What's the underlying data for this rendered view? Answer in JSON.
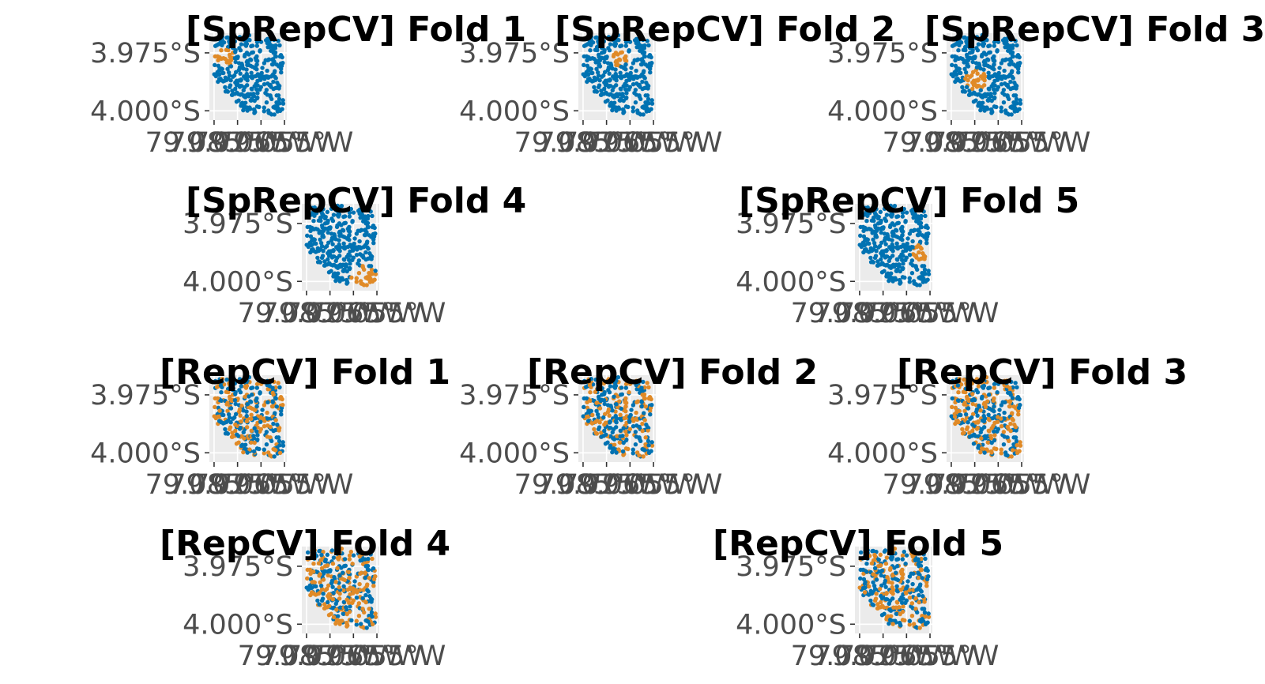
{
  "colors": {
    "training": "#0072B2",
    "testing": "#E08A27",
    "panel_background": "#EBEBEB",
    "grid": "#FFFFFF",
    "axis_text": "#4D4D4D",
    "title_text": "#000000"
  },
  "chart_data": [
    {
      "type": "scatter",
      "title": "[SpRepCV] Fold 1",
      "partition": "spatial",
      "test_region": {
        "lon": -79.0805,
        "lat": -3.9765,
        "radius": 0.0042
      },
      "x_ticks": [
        "79.085°W",
        "79.075°W",
        "79.065°W",
        "79.055°W"
      ],
      "y_ticks": [
        "3.975°S",
        "4.000°S"
      ],
      "xlim": [
        -79.087,
        -79.054
      ],
      "ylim": [
        -4.004,
        -3.9665
      ],
      "series": [
        {
          "color": "training"
        },
        {
          "color": "testing"
        }
      ]
    },
    {
      "type": "scatter",
      "title": "[SpRepCV] Fold 2",
      "partition": "spatial",
      "test_region": {
        "lon": -79.0695,
        "lat": -3.9765,
        "radius": 0.0042
      },
      "x_ticks": [
        "79.085°W",
        "79.075°W",
        "79.065°W",
        "79.055°W"
      ],
      "y_ticks": [
        "3.975°S",
        "4.000°S"
      ],
      "xlim": [
        -79.087,
        -79.054
      ],
      "ylim": [
        -4.004,
        -3.9665
      ],
      "series": [
        {
          "color": "training"
        },
        {
          "color": "testing"
        }
      ]
    },
    {
      "type": "scatter",
      "title": "[SpRepCV] Fold 3",
      "partition": "spatial",
      "test_region": {
        "lon": -79.0745,
        "lat": -3.9865,
        "radius": 0.0048
      },
      "x_ticks": [
        "79.085°W",
        "79.075°W",
        "79.065°W",
        "79.055°W"
      ],
      "y_ticks": [
        "3.975°S",
        "4.000°S"
      ],
      "xlim": [
        -79.087,
        -79.054
      ],
      "ylim": [
        -4.004,
        -3.9665
      ],
      "series": [
        {
          "color": "training"
        },
        {
          "color": "testing"
        }
      ]
    },
    {
      "type": "scatter",
      "title": "[SpRepCV] Fold 4",
      "partition": "spatial",
      "test_region": {
        "lon": -79.0605,
        "lat": -3.9985,
        "radius": 0.0055
      },
      "x_ticks": [
        "79.085°W",
        "79.075°W",
        "79.065°W",
        "79.055°W"
      ],
      "y_ticks": [
        "3.975°S",
        "4.000°S"
      ],
      "xlim": [
        -79.087,
        -79.054
      ],
      "ylim": [
        -4.004,
        -3.9665
      ],
      "series": [
        {
          "color": "training"
        },
        {
          "color": "testing"
        }
      ]
    },
    {
      "type": "scatter",
      "title": "[SpRepCV] Fold 5",
      "partition": "spatial",
      "test_region": {
        "lon": -79.0585,
        "lat": -3.9885,
        "radius": 0.0047
      },
      "x_ticks": [
        "79.085°W",
        "79.075°W",
        "79.065°W",
        "79.055°W"
      ],
      "y_ticks": [
        "3.975°S",
        "4.000°S"
      ],
      "xlim": [
        -79.087,
        -79.054
      ],
      "ylim": [
        -4.004,
        -3.9665
      ],
      "series": [
        {
          "color": "training"
        },
        {
          "color": "testing"
        }
      ]
    },
    {
      "type": "scatter",
      "title": "[RepCV] Fold 1",
      "partition": "random",
      "test_fraction": 0.5,
      "x_ticks": [
        "79.085°W",
        "79.075°W",
        "79.065°W",
        "79.055°W"
      ],
      "y_ticks": [
        "3.975°S",
        "4.000°S"
      ],
      "xlim": [
        -79.087,
        -79.054
      ],
      "ylim": [
        -4.004,
        -3.9665
      ],
      "series": [
        {
          "color": "training"
        },
        {
          "color": "testing"
        }
      ]
    },
    {
      "type": "scatter",
      "title": "[RepCV] Fold 2",
      "partition": "random",
      "test_fraction": 0.5,
      "x_ticks": [
        "79.085°W",
        "79.075°W",
        "79.065°W",
        "79.055°W"
      ],
      "y_ticks": [
        "3.975°S",
        "4.000°S"
      ],
      "xlim": [
        -79.087,
        -79.054
      ],
      "ylim": [
        -4.004,
        -3.9665
      ],
      "series": [
        {
          "color": "training"
        },
        {
          "color": "testing"
        }
      ]
    },
    {
      "type": "scatter",
      "title": "[RepCV] Fold 3",
      "partition": "random",
      "test_fraction": 0.5,
      "x_ticks": [
        "79.085°W",
        "79.075°W",
        "79.065°W",
        "79.055°W"
      ],
      "y_ticks": [
        "3.975°S",
        "4.000°S"
      ],
      "xlim": [
        -79.087,
        -79.054
      ],
      "ylim": [
        -4.004,
        -3.9665
      ],
      "series": [
        {
          "color": "training"
        },
        {
          "color": "testing"
        }
      ]
    },
    {
      "type": "scatter",
      "title": "[RepCV] Fold 4",
      "partition": "random",
      "test_fraction": 0.5,
      "x_ticks": [
        "79.085°W",
        "79.075°W",
        "79.065°W",
        "79.055°W"
      ],
      "y_ticks": [
        "3.975°S",
        "4.000°S"
      ],
      "xlim": [
        -79.087,
        -79.054
      ],
      "ylim": [
        -4.004,
        -3.9665
      ],
      "series": [
        {
          "color": "training"
        },
        {
          "color": "testing"
        }
      ]
    },
    {
      "type": "scatter",
      "title": "[RepCV] Fold 5",
      "partition": "random",
      "test_fraction": 0.5,
      "x_ticks": [
        "79.085°W",
        "79.075°W",
        "79.065°W",
        "79.055°W"
      ],
      "y_ticks": [
        "3.975°S",
        "4.000°S"
      ],
      "xlim": [
        -79.087,
        -79.054
      ],
      "ylim": [
        -4.004,
        -3.9665
      ],
      "series": [
        {
          "color": "training"
        },
        {
          "color": "testing"
        }
      ]
    }
  ]
}
